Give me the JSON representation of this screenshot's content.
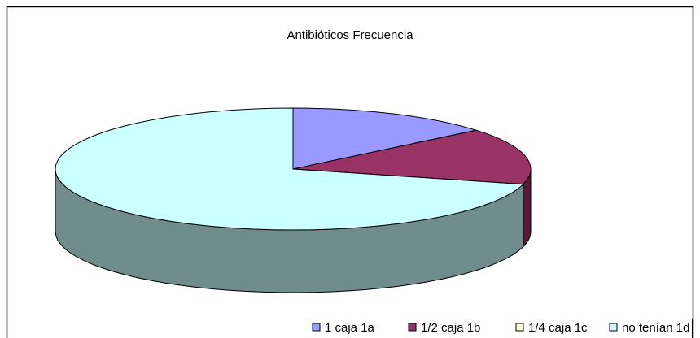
{
  "chart_data": {
    "type": "pie",
    "title": "Antibióticos Frecuencia",
    "categories": [
      "1 caja 1a",
      "1/2 caja 1b",
      "1/4 caja 1c",
      "no tenían 1d"
    ],
    "values": [
      14,
      15,
      0,
      71
    ],
    "colors": [
      "#9999ff",
      "#993366",
      "#ffffcc",
      "#ccffff"
    ],
    "legend": "bottom-right"
  }
}
